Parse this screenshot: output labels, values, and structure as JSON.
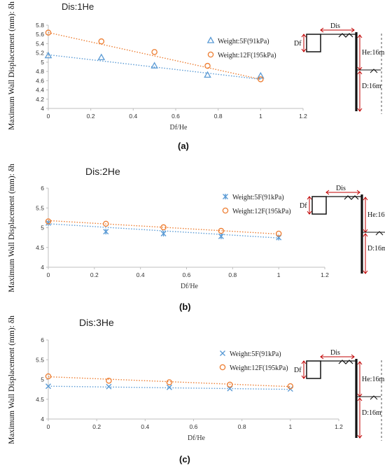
{
  "chart_data": [
    {
      "type": "line",
      "title": "Dis:1He",
      "caption": "(a)",
      "xlabel": "Df/He",
      "ylabel": "Maximum Wall Displacement (mm): δh",
      "xlim": [
        0,
        1.2
      ],
      "ylim": [
        4,
        5.8
      ],
      "x_ticks": [
        "0",
        "0.2",
        "0.4",
        "0.6",
        "0.8",
        "1",
        "1.2"
      ],
      "y_ticks": [
        "4",
        "4.2",
        "4.4",
        "4.6",
        "4.8",
        "5",
        "5.2",
        "5.4",
        "5.6",
        "5.8"
      ],
      "x": [
        0,
        0.25,
        0.5,
        0.75,
        1
      ],
      "series": [
        {
          "name": "Weight:5F(91kPa)",
          "marker": "triangle",
          "color": "#5b9bd5",
          "values": [
            5.14,
            5.1,
            4.92,
            4.72,
            4.7
          ],
          "trend": [
            5.16,
            4.63
          ]
        },
        {
          "name": "Weight:12F(195kPa)",
          "marker": "circle",
          "color": "#ed7d31",
          "values": [
            5.64,
            5.45,
            5.22,
            4.92,
            4.63
          ],
          "trend": [
            5.64,
            4.63
          ]
        }
      ],
      "legend": "top-right",
      "grid": false
    },
    {
      "type": "line",
      "title": "Dis:2He",
      "caption": "(b)",
      "xlabel": "Df/He",
      "ylabel": "Maximum Wall Displacement (mm): δh",
      "xlim": [
        0,
        1.2
      ],
      "ylim": [
        4,
        6
      ],
      "x_ticks": [
        "0",
        "0.2",
        "0.4",
        "0.6",
        "0.8",
        "1",
        "1.2"
      ],
      "y_ticks": [
        "4",
        "4.5",
        "5",
        "5.5",
        "6"
      ],
      "x": [
        0,
        0.25,
        0.5,
        0.75,
        1
      ],
      "series": [
        {
          "name": "Weight:5F(91kPa)",
          "marker": "star",
          "color": "#5b9bd5",
          "values": [
            5.12,
            4.9,
            4.85,
            4.78,
            4.75
          ],
          "trend": [
            5.1,
            4.74
          ]
        },
        {
          "name": "Weight:12F(195kPa)",
          "marker": "circle",
          "color": "#ed7d31",
          "values": [
            5.16,
            5.1,
            5.01,
            4.92,
            4.85
          ],
          "trend": [
            5.18,
            4.84
          ]
        }
      ],
      "legend": "top-right",
      "grid": false
    },
    {
      "type": "line",
      "title": "Dis:3He",
      "caption": "(c)",
      "xlabel": "Df/He",
      "ylabel": "Maximum Wall Displacement (mm): δh",
      "xlim": [
        0,
        1.2
      ],
      "ylim": [
        4,
        6
      ],
      "x_ticks": [
        "0",
        "0.2",
        "0.4",
        "0.6",
        "0.8",
        "1",
        "1.2"
      ],
      "y_ticks": [
        "4",
        "4.5",
        "5",
        "5.5",
        "6"
      ],
      "x": [
        0,
        0.25,
        0.5,
        0.75,
        1
      ],
      "series": [
        {
          "name": "Weight:5F(91kPa)",
          "marker": "x",
          "color": "#5b9bd5",
          "values": [
            4.83,
            4.82,
            4.8,
            4.77,
            4.76
          ],
          "trend": [
            4.83,
            4.75
          ]
        },
        {
          "name": "Weight:12F(195kPa)",
          "marker": "circle",
          "color": "#ed7d31",
          "values": [
            5.08,
            4.97,
            4.93,
            4.87,
            4.83
          ],
          "trend": [
            5.07,
            4.82
          ]
        }
      ],
      "legend": "top-right",
      "grid": false
    }
  ],
  "diagram_labels": {
    "df": "Df",
    "dis": "Dis",
    "he": "He:16m",
    "d": "D:16m"
  },
  "colors": {
    "series_5f": "#5b9bd5",
    "series_12f": "#ed7d31",
    "axis": "#bfbfbf",
    "dimension_arrow": "#c00000"
  }
}
